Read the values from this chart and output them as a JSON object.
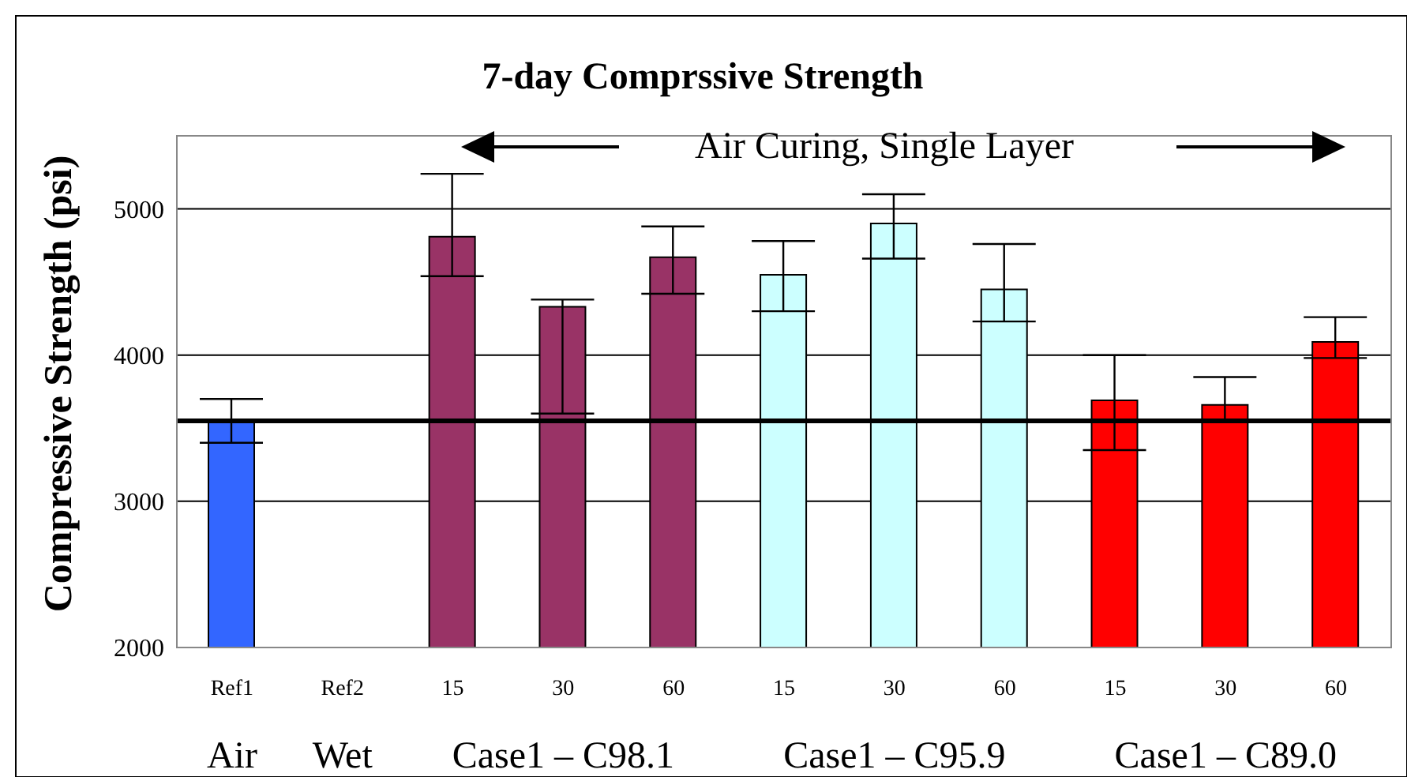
{
  "chart_data": {
    "type": "bar",
    "title": "7-day Comprssive Strength",
    "ylabel": "Compressive Strength (psi)",
    "categories": [
      "Ref1",
      "Ref2",
      "15",
      "30",
      "60",
      "15",
      "30",
      "60",
      "15",
      "30",
      "60"
    ],
    "values": [
      3550,
      null,
      4810,
      4330,
      4670,
      4550,
      4900,
      4450,
      3690,
      3660,
      4090
    ],
    "errors": [
      [
        3400,
        3700
      ],
      null,
      [
        4540,
        5240
      ],
      [
        3600,
        4380
      ],
      [
        4420,
        4880
      ],
      [
        4300,
        4780
      ],
      [
        4660,
        5100
      ],
      [
        4230,
        4760
      ],
      [
        3350,
        4000
      ],
      [
        3560,
        3850
      ],
      [
        3980,
        4260
      ]
    ],
    "colors": [
      "#3366ff",
      "#3366ff",
      "#993366",
      "#993366",
      "#993366",
      "#ccffff",
      "#ccffff",
      "#ccffff",
      "#ff0000",
      "#ff0000",
      "#ff0000"
    ],
    "ylim": [
      2000,
      5500
    ],
    "yticks": [
      2000,
      3000,
      4000,
      5000
    ],
    "grid": "y",
    "ref_lines": [
      {
        "axis": "y",
        "value": 3550,
        "color": "#000000"
      }
    ],
    "annotations": [
      "Air Curing, Single Layer",
      "Air",
      "Wet",
      "Case1 – C98.1",
      "Case1 – C95.9",
      "Case1 – C89.0"
    ]
  }
}
